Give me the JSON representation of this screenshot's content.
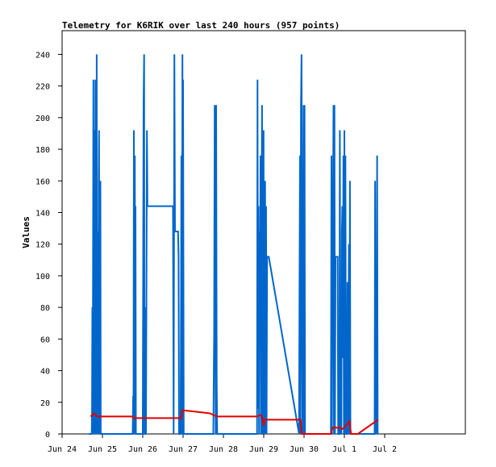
{
  "chart_data": {
    "type": "line",
    "title": "Telemetry for K6RIK over last 240 hours (957 points)",
    "ylabel": "Values",
    "xlabel": "",
    "ylim": [
      0,
      255
    ],
    "xlim_hours": [
      0,
      240
    ],
    "grid": false,
    "legend": "none",
    "y_ticks": [
      0,
      20,
      40,
      60,
      80,
      100,
      120,
      140,
      160,
      180,
      200,
      220,
      240
    ],
    "x_ticks": [
      {
        "h": 0,
        "label": "Jun 24"
      },
      {
        "h": 24,
        "label": "Jun 25"
      },
      {
        "h": 48,
        "label": "Jun 26"
      },
      {
        "h": 72,
        "label": "Jun 27"
      },
      {
        "h": 96,
        "label": "Jun 28"
      },
      {
        "h": 120,
        "label": "Jun 29"
      },
      {
        "h": 144,
        "label": "Jun 30"
      },
      {
        "h": 168,
        "label": "Jul 1"
      },
      {
        "h": 192,
        "label": "Jul 2"
      }
    ],
    "series": [
      {
        "color": "#0066cc",
        "points": [
          [
            16.0,
            0
          ],
          [
            17.6,
            0
          ],
          [
            17.8,
            15
          ],
          [
            18.0,
            80
          ],
          [
            18.2,
            0
          ],
          [
            18.4,
            96
          ],
          [
            18.6,
            224
          ],
          [
            18.8,
            0
          ],
          [
            19.0,
            160
          ],
          [
            19.2,
            30
          ],
          [
            19.4,
            192
          ],
          [
            19.6,
            0
          ],
          [
            19.8,
            224
          ],
          [
            20.0,
            120
          ],
          [
            20.2,
            208
          ],
          [
            20.4,
            0
          ],
          [
            20.6,
            240
          ],
          [
            20.8,
            0
          ],
          [
            21.0,
            128
          ],
          [
            21.2,
            0
          ],
          [
            21.4,
            64
          ],
          [
            21.6,
            0
          ],
          [
            21.8,
            160
          ],
          [
            22.0,
            192
          ],
          [
            22.2,
            0
          ],
          [
            22.4,
            128
          ],
          [
            22.6,
            0
          ],
          [
            22.8,
            160
          ],
          [
            23.0,
            0
          ],
          [
            24.0,
            0
          ],
          [
            41.0,
            0
          ],
          [
            42.0,
            0
          ],
          [
            42.3,
            24
          ],
          [
            42.5,
            0
          ],
          [
            42.7,
            192
          ],
          [
            42.9,
            88
          ],
          [
            43.1,
            0
          ],
          [
            43.3,
            176
          ],
          [
            43.5,
            0
          ],
          [
            43.7,
            144
          ],
          [
            43.9,
            0
          ],
          [
            48.0,
            0
          ],
          [
            48.5,
            208
          ],
          [
            48.8,
            240
          ],
          [
            49.0,
            0
          ],
          [
            49.3,
            0
          ],
          [
            49.6,
            80
          ],
          [
            49.9,
            0
          ],
          [
            50.2,
            96
          ],
          [
            50.5,
            192
          ],
          [
            50.8,
            144
          ],
          [
            66.0,
            144
          ],
          [
            66.4,
            0
          ],
          [
            66.8,
            240
          ],
          [
            67.2,
            128
          ],
          [
            69.0,
            128
          ],
          [
            69.3,
            112
          ],
          [
            69.6,
            0
          ],
          [
            70.5,
            0
          ],
          [
            70.8,
            88
          ],
          [
            71.0,
            176
          ],
          [
            71.2,
            0
          ],
          [
            71.4,
            112
          ],
          [
            71.6,
            240
          ],
          [
            71.8,
            0
          ],
          [
            72.0,
            224
          ],
          [
            72.2,
            112
          ],
          [
            72.4,
            0
          ],
          [
            90.0,
            0
          ],
          [
            90.5,
            64
          ],
          [
            90.8,
            208
          ],
          [
            91.1,
            88
          ],
          [
            91.4,
            0
          ],
          [
            91.7,
            208
          ],
          [
            92.0,
            32
          ],
          [
            92.3,
            0
          ],
          [
            92.6,
            0
          ],
          [
            116.0,
            0
          ],
          [
            116.3,
            224
          ],
          [
            116.6,
            16
          ],
          [
            116.9,
            144
          ],
          [
            117.2,
            0
          ],
          [
            117.5,
            128
          ],
          [
            117.8,
            64
          ],
          [
            118.1,
            176
          ],
          [
            118.4,
            0
          ],
          [
            118.7,
            128
          ],
          [
            119.0,
            208
          ],
          [
            119.3,
            0
          ],
          [
            119.6,
            96
          ],
          [
            119.9,
            192
          ],
          [
            120.2,
            0
          ],
          [
            120.5,
            64
          ],
          [
            120.8,
            160
          ],
          [
            121.1,
            0
          ],
          [
            121.4,
            144
          ],
          [
            121.7,
            0
          ],
          [
            122.0,
            112
          ],
          [
            123.0,
            112
          ],
          [
            141.0,
            0
          ],
          [
            141.3,
            96
          ],
          [
            141.6,
            176
          ],
          [
            141.9,
            0
          ],
          [
            142.2,
            208
          ],
          [
            142.5,
            240
          ],
          [
            142.8,
            80
          ],
          [
            143.1,
            0
          ],
          [
            143.4,
            80
          ],
          [
            143.7,
            208
          ],
          [
            144.0,
            0
          ],
          [
            144.3,
            208
          ],
          [
            144.6,
            0
          ],
          [
            160.0,
            0
          ],
          [
            160.3,
            176
          ],
          [
            160.6,
            0
          ],
          [
            160.9,
            96
          ],
          [
            161.2,
            128
          ],
          [
            161.5,
            208
          ],
          [
            161.8,
            0
          ],
          [
            162.1,
            208
          ],
          [
            162.4,
            0
          ],
          [
            162.7,
            112
          ],
          [
            164.0,
            112
          ],
          [
            164.3,
            0
          ],
          [
            165.0,
            0
          ],
          [
            165.3,
            192
          ],
          [
            165.6,
            0
          ],
          [
            165.9,
            64
          ],
          [
            166.2,
            0
          ],
          [
            166.5,
            128
          ],
          [
            166.8,
            144
          ],
          [
            167.1,
            48
          ],
          [
            167.4,
            176
          ],
          [
            167.7,
            0
          ],
          [
            168.0,
            192
          ],
          [
            168.3,
            0
          ],
          [
            168.6,
            176
          ],
          [
            168.9,
            16
          ],
          [
            169.2,
            0
          ],
          [
            169.5,
            0
          ],
          [
            169.8,
            96
          ],
          [
            170.1,
            64
          ],
          [
            170.4,
            0
          ],
          [
            170.7,
            120
          ],
          [
            171.0,
            0
          ],
          [
            171.3,
            160
          ],
          [
            171.6,
            0
          ],
          [
            186.0,
            0
          ],
          [
            186.3,
            160
          ],
          [
            186.6,
            0
          ],
          [
            186.9,
            96
          ],
          [
            187.2,
            0
          ],
          [
            187.5,
            176
          ],
          [
            187.8,
            0
          ]
        ]
      },
      {
        "color": "#e00000",
        "points": [
          [
            17.0,
            11
          ],
          [
            18.0,
            12
          ],
          [
            19.0,
            13
          ],
          [
            21.0,
            11
          ],
          [
            24.0,
            11
          ],
          [
            42.0,
            11
          ],
          [
            42.5,
            10
          ],
          [
            67.0,
            10
          ],
          [
            71.0,
            10
          ],
          [
            71.5,
            15
          ],
          [
            80.0,
            14
          ],
          [
            88.0,
            13
          ],
          [
            92.0,
            11
          ],
          [
            116.0,
            11
          ],
          [
            118.0,
            12
          ],
          [
            119.0,
            11
          ],
          [
            120.0,
            5
          ],
          [
            120.5,
            9
          ],
          [
            124.0,
            9
          ],
          [
            142.0,
            9
          ],
          [
            142.5,
            0
          ],
          [
            160.0,
            0
          ],
          [
            161.0,
            4
          ],
          [
            166.0,
            4
          ],
          [
            166.5,
            3
          ],
          [
            168.0,
            4
          ],
          [
            171.0,
            8
          ],
          [
            172.0,
            0
          ],
          [
            176.0,
            0
          ],
          [
            188.0,
            9
          ]
        ]
      }
    ]
  }
}
